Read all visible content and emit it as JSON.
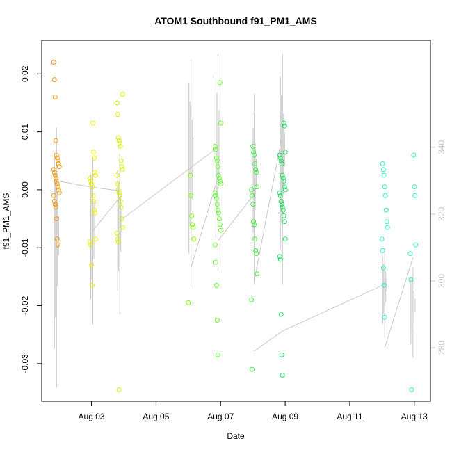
{
  "chart_data": {
    "type": "scatter",
    "title": "ATOM1 Southbound f91_PM1_AMS",
    "xlabel": "Date",
    "ylabel": "f91_PM1_AMS",
    "xlim": [
      "2023-08-01T11:00",
      "2023-08-13T12:00"
    ],
    "ylim": [
      -0.0365,
      0.0258
    ],
    "y2lim": [
      264,
      372
    ],
    "x_ticks": [
      {
        "value": "2023-08-03",
        "label": "Aug 03"
      },
      {
        "value": "2023-08-05",
        "label": "Aug 05"
      },
      {
        "value": "2023-08-07",
        "label": "Aug 07"
      },
      {
        "value": "2023-08-09",
        "label": "Aug 09"
      },
      {
        "value": "2023-08-11",
        "label": "Aug 11"
      },
      {
        "value": "2023-08-13",
        "label": "Aug 13"
      }
    ],
    "y_ticks": [
      -0.03,
      -0.02,
      -0.01,
      0.0,
      0.01,
      0.02
    ],
    "y_tick_labels": [
      "-0.03",
      "-0.02",
      "-0.01",
      "0.00",
      "0.01",
      "0.02"
    ],
    "y2_ticks": [
      280,
      300,
      320,
      340
    ],
    "y2_tick_labels": [
      "280",
      "300",
      "320",
      "340"
    ],
    "grid": false,
    "legend": "none",
    "colors": {
      "line": "#c8c8c8",
      "right_axis": "#c8c8c8",
      "clusters": [
        "#f39c12",
        "#f0f000",
        "#d9f000",
        "#80ff00",
        "#66ff33",
        "#40f040",
        "#20e060",
        "#30f0c0"
      ]
    },
    "point_groups": [
      {
        "x": "2023-08-01T22:00",
        "color": "#f39c12",
        "y": [
          0.022,
          0.019,
          0.016,
          0.0085,
          0.006,
          0.0055,
          0.005,
          0.0045,
          0.004,
          0.0035,
          0.003,
          0.0025,
          0.002,
          0.0015,
          0.001,
          0.0005,
          0.0,
          -0.0005,
          -0.001,
          -0.002,
          -0.0025,
          -0.003,
          -0.005,
          -0.0085,
          -0.0095
        ]
      },
      {
        "x": "2023-08-03T01:00",
        "color": "#f0f000",
        "y": [
          0.0115,
          0.0065,
          0.0055,
          0.003,
          0.0025,
          0.002,
          0.0015,
          0.001,
          0.0005,
          -0.001,
          -0.002,
          -0.0035,
          -0.004,
          -0.0085,
          -0.009,
          -0.0095,
          -0.013,
          -0.0165
        ]
      },
      {
        "x": "2023-08-03T21:00",
        "color": "#d9f000",
        "y": [
          0.0165,
          0.015,
          0.013,
          0.009,
          0.0085,
          0.008,
          0.0075,
          0.005,
          0.004,
          0.0035,
          0.0025,
          0.001,
          0.0,
          -0.0005,
          -0.001,
          -0.002,
          -0.003,
          -0.005,
          -0.0065,
          -0.0075,
          -0.0085,
          -0.009,
          -0.0345
        ]
      },
      {
        "x": "2023-08-06T02:00",
        "color": "#80ff00",
        "y": [
          0.0025,
          -0.001,
          -0.0045,
          -0.006,
          -0.0065,
          -0.0085,
          -0.0195
        ]
      },
      {
        "x": "2023-08-06T22:00",
        "color": "#66ff33",
        "y": [
          0.0185,
          0.0115,
          0.0075,
          0.007,
          0.0055,
          0.005,
          0.004,
          0.0025,
          0.002,
          0.0015,
          0.001,
          -0.0005,
          -0.001,
          -0.0015,
          -0.0025,
          -0.0035,
          -0.004,
          -0.005,
          -0.006,
          -0.007,
          -0.0095,
          -0.0125,
          -0.0165,
          -0.0225,
          -0.0285
        ]
      },
      {
        "x": "2023-08-08T01:00",
        "color": "#40f040",
        "y": [
          0.0075,
          0.0065,
          0.006,
          0.0045,
          0.0035,
          0.003,
          0.0005,
          0.0,
          -0.001,
          -0.0025,
          -0.0055,
          -0.006,
          -0.0085,
          -0.0105,
          -0.011,
          -0.0145,
          -0.019,
          -0.031
        ]
      },
      {
        "x": "2023-08-08T22:00",
        "color": "#20e060",
        "y": [
          0.0115,
          0.011,
          0.0065,
          0.006,
          0.0055,
          0.005,
          0.0045,
          0.0025,
          0.002,
          0.0015,
          0.0005,
          0.0,
          -0.0005,
          -0.001,
          -0.002,
          -0.0025,
          -0.003,
          -0.0035,
          -0.0045,
          -0.0055,
          -0.0085,
          -0.0115,
          -0.012,
          -0.0215,
          -0.0285,
          -0.032
        ]
      },
      {
        "x": "2023-08-12T02:00",
        "color": "#30f0c0",
        "y": [
          0.0045,
          0.0035,
          0.0025,
          0.0005,
          -0.001,
          -0.0035,
          -0.0055,
          -0.0065,
          -0.0085,
          -0.0105,
          -0.0135,
          -0.0165,
          -0.022
        ]
      },
      {
        "x": "2023-08-12T23:00",
        "color": "#30f0c0",
        "y": [
          0.006,
          0.0005,
          -0.001,
          -0.0095,
          -0.011,
          -0.0155,
          -0.0345
        ]
      }
    ],
    "trace_segments": [
      {
        "x": "2023-08-01T22:00",
        "y2": [
          268,
          346
        ]
      },
      {
        "x": "2023-08-03T01:00",
        "y2": [
          287,
          337
        ]
      },
      {
        "x": "2023-08-03T21:00",
        "y2": [
          290,
          338
        ]
      },
      {
        "x": "2023-08-06T02:00",
        "y2": [
          298,
          366
        ]
      },
      {
        "x": "2023-08-06T22:00",
        "y2": [
          303,
          368
        ]
      },
      {
        "x": "2023-08-08T01:00",
        "y2": [
          299,
          356
        ]
      },
      {
        "x": "2023-08-08T22:00",
        "y2": [
          299,
          368
        ]
      },
      {
        "x": "2023-08-12T02:00",
        "y2": [
          283,
          310
        ]
      },
      {
        "x": "2023-08-12T23:00",
        "y2": [
          277,
          304
        ]
      }
    ],
    "trace_connectors": [
      {
        "x1": "2023-08-01T22:00",
        "y1": 330,
        "x2": "2023-08-03T01:00",
        "y2": 328
      },
      {
        "x1": "2023-08-03T01:00",
        "y1": 328,
        "x2": "2023-08-03T21:00",
        "y2": 327
      },
      {
        "x1": "2023-08-03T01:00",
        "y1": 315,
        "x2": "2023-08-03T21:00",
        "y2": 325
      },
      {
        "x1": "2023-08-03T21:00",
        "y1": 318,
        "x2": "2023-08-06T22:00",
        "y2": 340
      },
      {
        "x1": "2023-08-06T02:00",
        "y1": 304,
        "x2": "2023-08-06T22:00",
        "y2": 331
      },
      {
        "x1": "2023-08-06T22:00",
        "y1": 312,
        "x2": "2023-08-08T01:00",
        "y2": 326
      },
      {
        "x1": "2023-08-08T01:00",
        "y1": 300,
        "x2": "2023-08-08T22:00",
        "y2": 344
      },
      {
        "x1": "2023-08-08T01:00",
        "y1": 279,
        "x2": "2023-08-08T22:00",
        "y2": 285
      },
      {
        "x1": "2023-08-08T22:00",
        "y1": 285,
        "x2": "2023-08-12T02:00",
        "y2": 299
      },
      {
        "x1": "2023-08-12T02:00",
        "y1": 280,
        "x2": "2023-08-12T23:00",
        "y2": 307
      }
    ]
  }
}
